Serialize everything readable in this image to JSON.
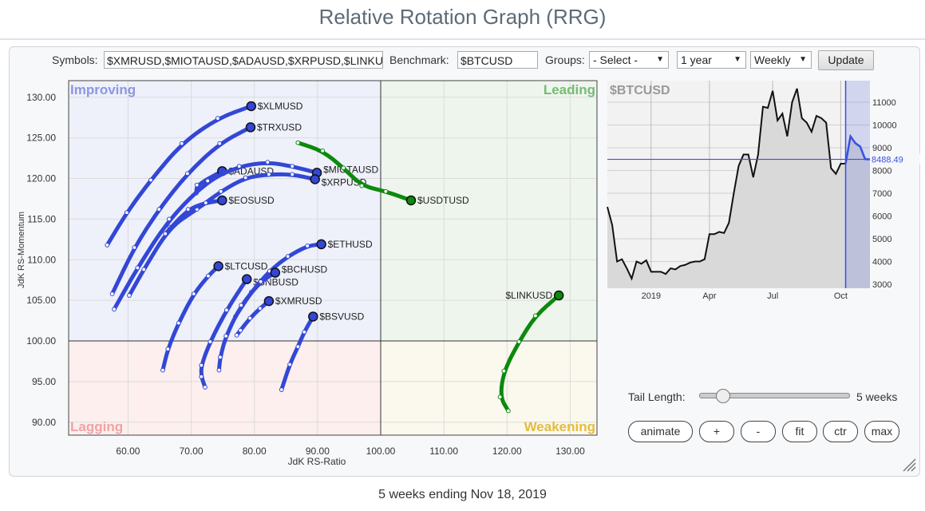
{
  "page_title": "Relative Rotation Graph (RRG)",
  "toolbar": {
    "symbols_label": "Symbols:",
    "symbols_value": "$XMRUSD,$MIOTAUSD,$ADAUSD,$XRPUSD,$LINKUSD",
    "benchmark_label": "Benchmark:",
    "benchmark_value": "$BTCUSD",
    "groups_label": "Groups:",
    "groups_value": "- Select -",
    "period_value": "1 year",
    "interval_value": "Weekly",
    "update_label": "Update"
  },
  "controls": {
    "tail_label": "Tail Length:",
    "tail_value": 5,
    "tail_text": "5 weeks",
    "buttons": [
      "animate",
      "+",
      "-",
      "fit",
      "ctr",
      "max"
    ]
  },
  "footer": "5 weeks ending Nov 18, 2019",
  "colors": {
    "trail_blue": "#3347d6",
    "trail_green": "#0b8a0b",
    "improving": "#8c96e6",
    "leading": "#76bb76",
    "lagging": "#f0a3a3",
    "weakening": "#e3bd3a",
    "benchmark_blue": "#3a4fe0"
  },
  "chart_data": [
    {
      "type": "scatter",
      "xlabel": "JdK RS-Ratio",
      "ylabel": "JdK RS-Momentum",
      "xlim": [
        50.6,
        134.2
      ],
      "ylim": [
        88.4,
        132.0
      ],
      "x_ticks": [
        60,
        70,
        80,
        90,
        100,
        110,
        120,
        130
      ],
      "y_ticks": [
        90,
        95,
        100,
        105,
        110,
        115,
        120,
        125,
        130
      ],
      "quadrants": {
        "top_left": "Improving",
        "top_right": "Leading",
        "bottom_left": "Lagging",
        "bottom_right": "Weakening"
      },
      "grid": true,
      "series": [
        {
          "name": "$XLMUSD",
          "color": "blue",
          "points": [
            [
              56.7,
              111.8
            ],
            [
              59.8,
              115.8
            ],
            [
              63.6,
              119.8
            ],
            [
              68.5,
              124.3
            ],
            [
              74.2,
              127.4
            ],
            [
              79.5,
              128.9
            ]
          ]
        },
        {
          "name": "$TRXUSD",
          "color": "blue",
          "points": [
            [
              57.5,
              105.8
            ],
            [
              61.0,
              111.5
            ],
            [
              64.9,
              116.2
            ],
            [
              69.4,
              120.6
            ],
            [
              74.5,
              124.3
            ],
            [
              79.4,
              126.3
            ]
          ]
        },
        {
          "name": "$ADAUSD",
          "color": "blue",
          "points": [
            [
              70.8,
              118.2
            ],
            [
              70.9,
              119.2
            ],
            [
              74.9,
              120.9
            ]
          ]
        },
        {
          "name": "$MIOTAUSD",
          "color": "blue",
          "points": [
            [
              57.8,
              103.9
            ],
            [
              61.5,
              109.0
            ],
            [
              66.5,
              115.0
            ],
            [
              72.6,
              119.7
            ],
            [
              77.6,
              121.5
            ],
            [
              82.1,
              122.0
            ],
            [
              86.0,
              121.5
            ],
            [
              89.9,
              120.7
            ]
          ]
        },
        {
          "name": "$XRPUSD",
          "color": "blue",
          "points": [
            [
              60.2,
              105.6
            ],
            [
              62.5,
              108.8
            ],
            [
              66.6,
              114.0
            ],
            [
              70.9,
              116.2
            ],
            [
              74.7,
              118.4
            ],
            [
              78.6,
              120.1
            ],
            [
              82.3,
              120.5
            ],
            [
              86.0,
              120.5
            ],
            [
              89.6,
              119.9
            ]
          ]
        },
        {
          "name": "$EOSUSD",
          "color": "blue",
          "points": [
            [
              65.9,
              113.2
            ],
            [
              69.5,
              116.2
            ],
            [
              72.3,
              117.0
            ],
            [
              74.9,
              117.3
            ]
          ]
        },
        {
          "name": "$ETHUSD",
          "color": "blue",
          "points": [
            [
              77.0,
              103.0
            ],
            [
              79.5,
              106.0
            ],
            [
              82.4,
              108.6
            ],
            [
              85.3,
              110.4
            ],
            [
              88.4,
              111.7
            ],
            [
              90.6,
              111.9
            ]
          ]
        },
        {
          "name": "$BCHUSD",
          "color": "blue",
          "points": [
            [
              74.4,
              96.4
            ],
            [
              74.6,
              98.0
            ],
            [
              75.5,
              100.6
            ],
            [
              77.9,
              104.4
            ],
            [
              81.0,
              107.3
            ],
            [
              83.3,
              108.4
            ]
          ]
        },
        {
          "name": "$BNBUSD",
          "color": "blue",
          "points": [
            [
              72.2,
              94.3
            ],
            [
              71.6,
              95.6
            ],
            [
              71.6,
              97.0
            ],
            [
              73.0,
              99.9
            ],
            [
              75.6,
              103.8
            ],
            [
              78.8,
              107.6
            ]
          ]
        },
        {
          "name": "$LTCUSD",
          "color": "blue",
          "points": [
            [
              65.5,
              96.4
            ],
            [
              66.3,
              99.0
            ],
            [
              68.0,
              102.2
            ],
            [
              70.4,
              105.8
            ],
            [
              72.7,
              108.0
            ],
            [
              74.3,
              109.2
            ]
          ]
        },
        {
          "name": "$XMRUSD",
          "color": "blue",
          "points": [
            [
              77.2,
              100.7
            ],
            [
              77.8,
              101.3
            ],
            [
              79.3,
              102.8
            ],
            [
              80.9,
              104.0
            ],
            [
              82.3,
              104.9
            ]
          ]
        },
        {
          "name": "$BSVUSD",
          "color": "blue",
          "points": [
            [
              84.3,
              94.0
            ],
            [
              85.6,
              97.1
            ],
            [
              86.9,
              99.3
            ],
            [
              87.9,
              101.1
            ],
            [
              89.3,
              103.0
            ]
          ]
        },
        {
          "name": "$USDTUSD",
          "color": "green",
          "points": [
            [
              86.9,
              124.4
            ],
            [
              90.8,
              123.4
            ],
            [
              94.1,
              121.3
            ],
            [
              97.0,
              119.1
            ],
            [
              100.8,
              118.4
            ],
            [
              104.8,
              117.3
            ]
          ]
        },
        {
          "name": "$LINKUSD",
          "color": "green",
          "label_side": "left",
          "points": [
            [
              120.2,
              91.4
            ],
            [
              118.9,
              93.1
            ],
            [
              119.5,
              96.3
            ],
            [
              121.9,
              99.9
            ],
            [
              124.5,
              103.1
            ],
            [
              128.2,
              105.6
            ]
          ]
        }
      ]
    },
    {
      "type": "area",
      "title": "$BTCUSD",
      "last_value": "8488.49",
      "ylim": [
        2800,
        12000
      ],
      "y_ticks": [
        3000,
        4000,
        5000,
        6000,
        7000,
        8000,
        9000,
        10000,
        11000
      ],
      "x_ticks": [
        {
          "label": "2019",
          "week": 9
        },
        {
          "label": "Apr",
          "week": 21
        },
        {
          "label": "Jul",
          "week": 34
        },
        {
          "label": "Oct",
          "week": 48
        }
      ],
      "highlight_from_week": 49,
      "values": [
        6400,
        5600,
        4000,
        4100,
        3700,
        3250,
        4000,
        3900,
        4050,
        3550,
        3550,
        3550,
        3450,
        3700,
        3650,
        3800,
        3850,
        3950,
        4000,
        4000,
        4100,
        5200,
        5200,
        5300,
        5250,
        5700,
        7000,
        8200,
        8700,
        8700,
        7700,
        8700,
        10800,
        10750,
        11500,
        10200,
        10500,
        9500,
        11000,
        11600,
        10300,
        10100,
        9700,
        10400,
        10300,
        10100,
        8100,
        7850,
        8300,
        8300,
        9500,
        9200,
        9050,
        8500,
        8488
      ]
    }
  ]
}
